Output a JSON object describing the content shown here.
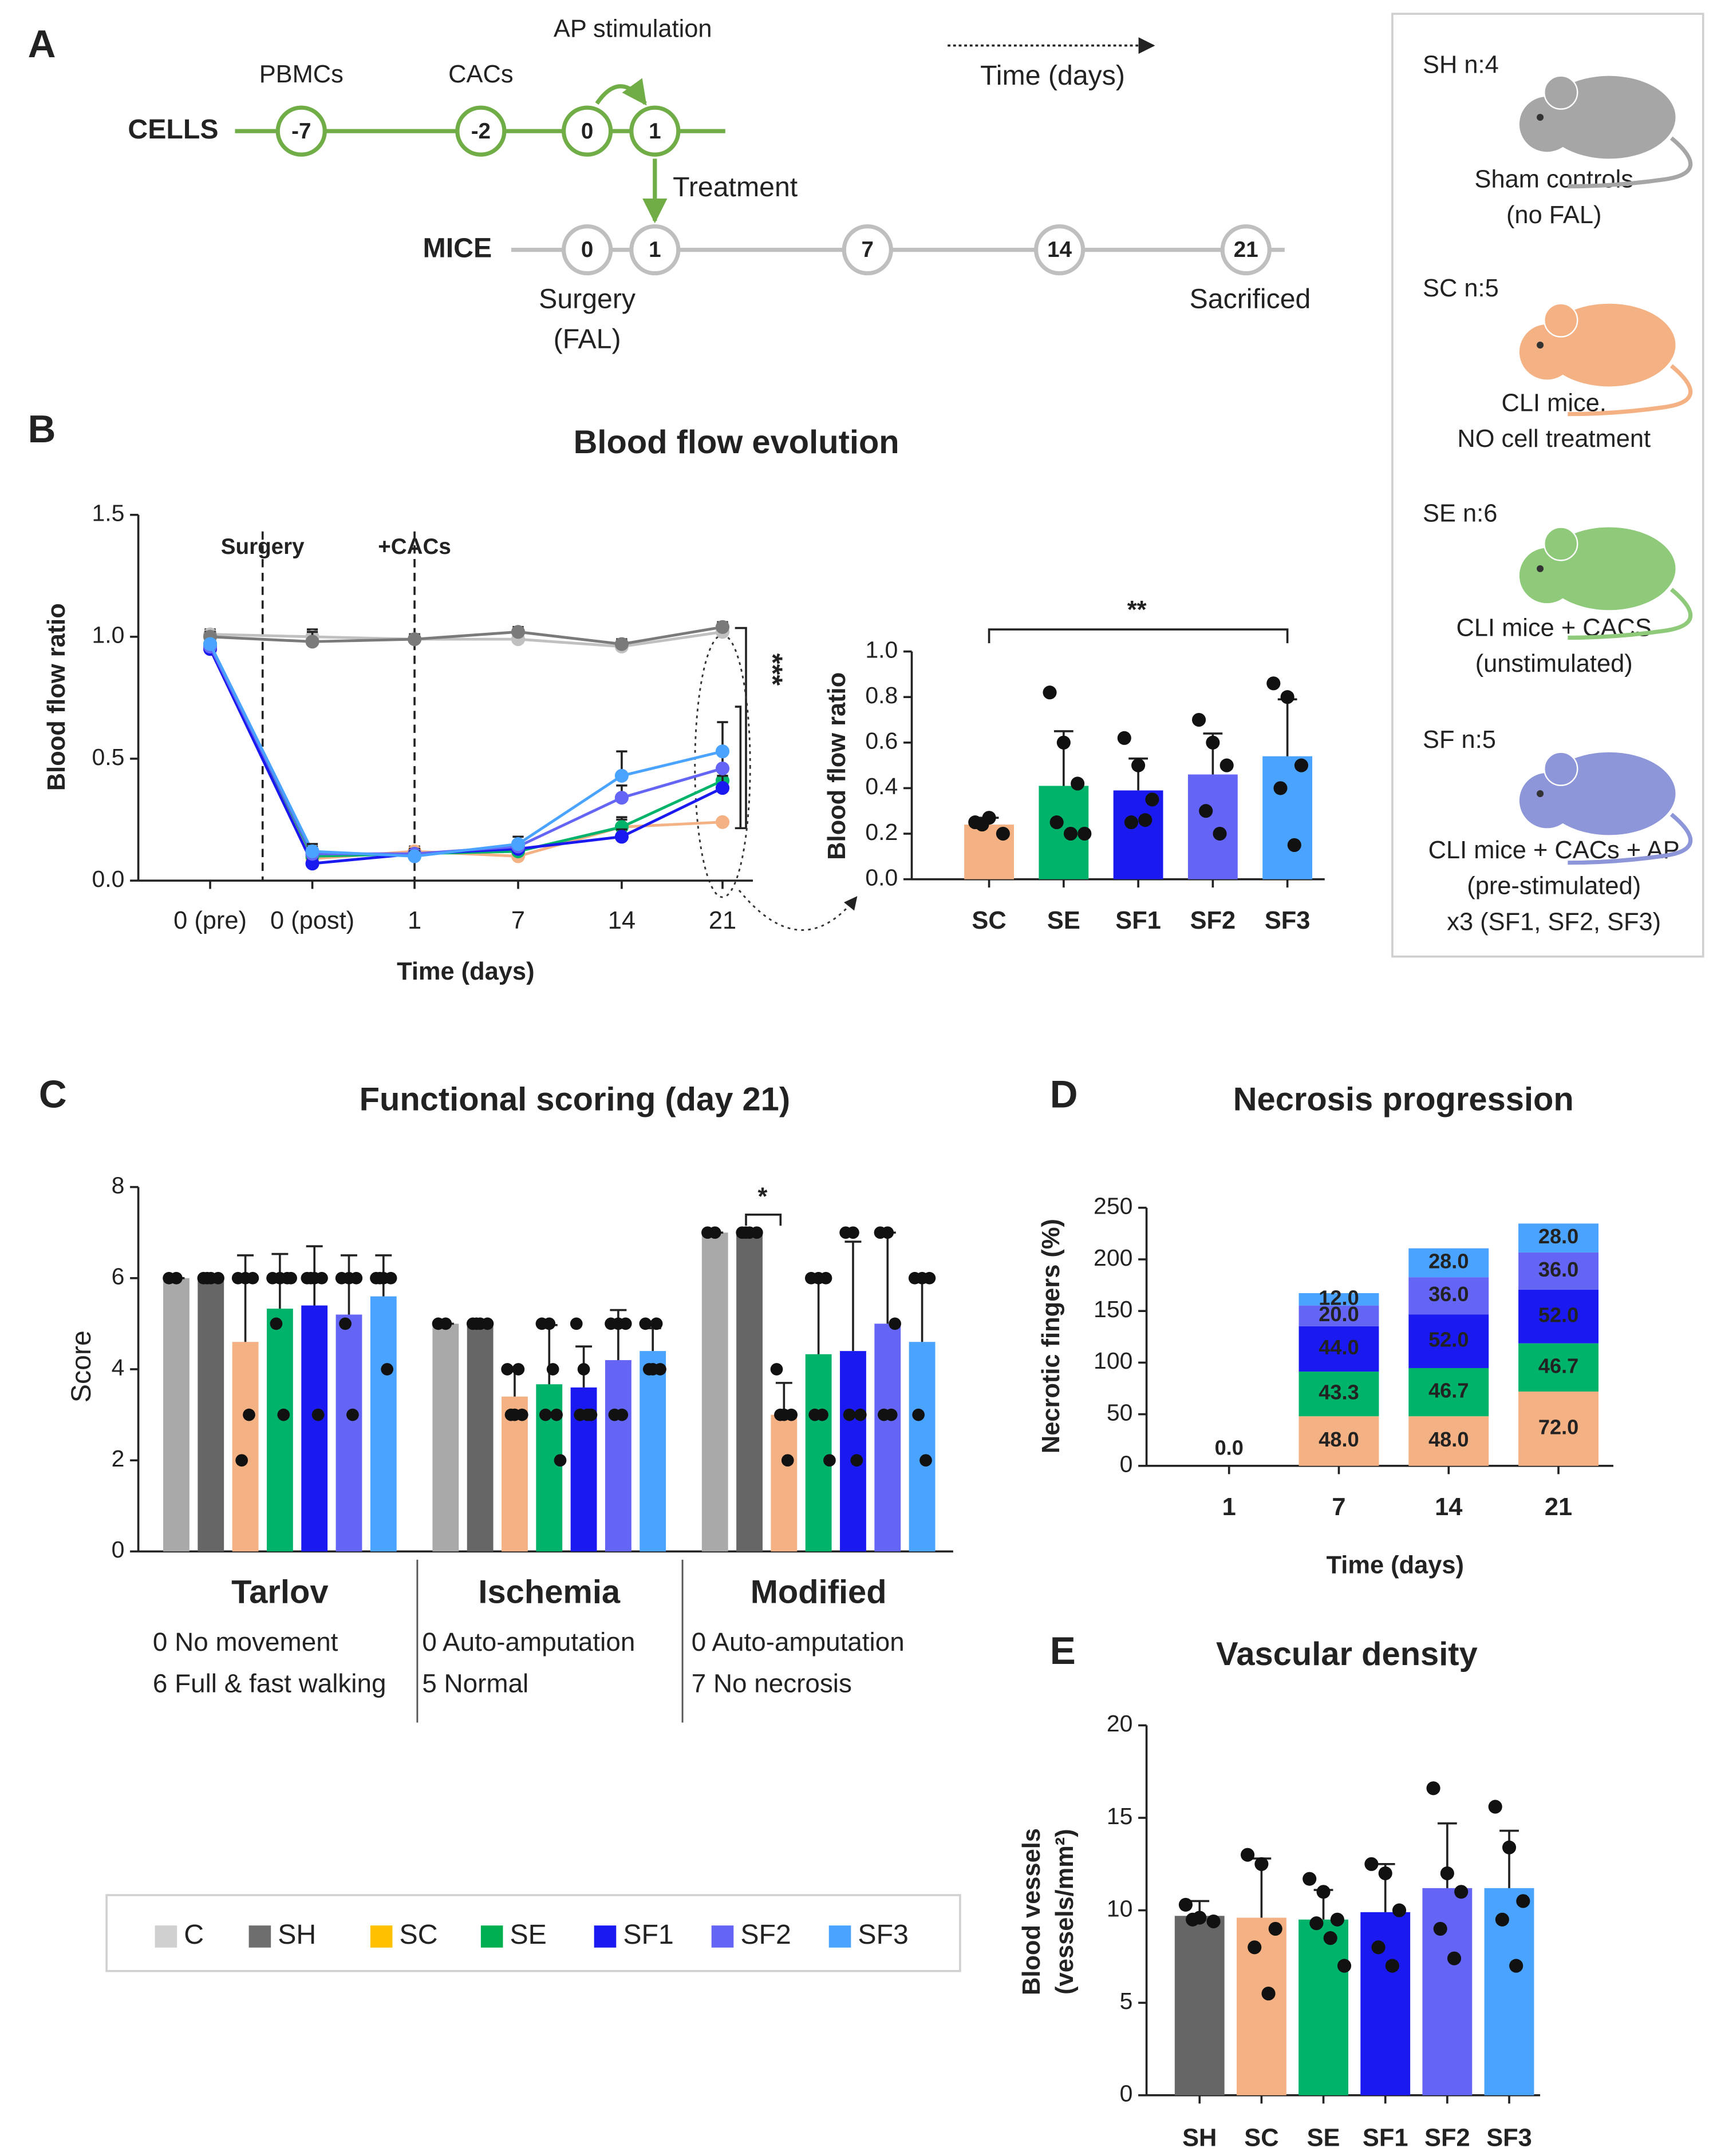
{
  "panel_labels": [
    "A",
    "B",
    "C",
    "D",
    "E"
  ],
  "timeline": {
    "cells_label": "CELLS",
    "mice_label": "MICE",
    "cells_nodes": [
      "-7",
      "-2",
      "0",
      "1"
    ],
    "cells_texts": [
      "PBMCs",
      "CACs",
      "AP stimulation"
    ],
    "mice_nodes": [
      "0",
      "1",
      "7",
      "14",
      "21"
    ],
    "treatment": "Treatment",
    "surgery": "Surgery",
    "fal": "(FAL)",
    "sacrificed": "Sacrificed",
    "time_arrow": "Time (days)"
  },
  "groups_box": [
    {
      "label": "SH n:4",
      "desc": [
        "Sham controls",
        "(no FAL)"
      ],
      "color": "#7f7f7f",
      "icon_color": "#a6a6a6"
    },
    {
      "label": "SC n:5",
      "desc": [
        "CLI mice,",
        "NO cell treatment"
      ],
      "color": "#ffc000",
      "icon_color": "#f4b183"
    },
    {
      "label": "SE n:6",
      "desc": [
        "CLI mice + CACS",
        "(unstimulated)"
      ],
      "color": "#00b050",
      "icon_color": "#8fc97a"
    },
    {
      "label": "SF n:5",
      "desc": [
        "CLI mice + CACs + AP",
        "(pre-stimulated)",
        "x3 (SF1, SF2, SF3)"
      ],
      "color": "#0070c0",
      "icon_color": "#8c96d8"
    }
  ],
  "legend": {
    "items": [
      {
        "name": "C",
        "color": "#d0d0d0"
      },
      {
        "name": "SH",
        "color": "#6e6e6e"
      },
      {
        "name": "SC",
        "color": "#ffc000"
      },
      {
        "name": "SE",
        "color": "#00b050"
      },
      {
        "name": "SF1",
        "color": "#1a1af0"
      },
      {
        "name": "SF2",
        "color": "#6464f5"
      },
      {
        "name": "SF3",
        "color": "#4aa3ff"
      }
    ]
  },
  "chart_data": [
    {
      "type": "line",
      "title": "Blood flow evolution",
      "x_label": "Time (days)",
      "y_label": "Blood flow ratio",
      "categories": [
        "0 (pre)",
        "0 (post)",
        "1",
        "7",
        "14",
        "21"
      ],
      "ylim": [
        0,
        1.5
      ],
      "yticks": [
        {
          "value": 0,
          "label": "0.0"
        },
        0.5,
        {
          "value": 1,
          "label": "1.0"
        },
        1.5
      ],
      "annotations": [
        "Surgery",
        "+CACs",
        "***"
      ],
      "series": [
        {
          "name": "C",
          "color": "#c0c0c0",
          "values": [
            1.01,
            1.0,
            0.99,
            0.99,
            0.96,
            1.02
          ],
          "errors": [
            0.02,
            0.03,
            0.02,
            0.03,
            0.02,
            0.02
          ]
        },
        {
          "name": "SH",
          "color": "#7a7a7a",
          "values": [
            1.0,
            0.98,
            0.99,
            1.02,
            0.97,
            1.04
          ],
          "errors": [
            0.02,
            0.04,
            0.02,
            0.02,
            0.02,
            0.02
          ]
        },
        {
          "name": "SC",
          "color": "#f4b183",
          "values": [
            0.97,
            0.09,
            0.12,
            0.1,
            0.22,
            0.24
          ],
          "errors": [
            0.01,
            0.02,
            0.02,
            0.02,
            0.03,
            0
          ]
        },
        {
          "name": "SE",
          "color": "#00b36b",
          "values": [
            0.97,
            0.1,
            0.11,
            0.12,
            0.22,
            0.41
          ],
          "errors": [
            0.01,
            0.02,
            0.02,
            0.03,
            0.04,
            0.05
          ]
        },
        {
          "name": "SF1",
          "color": "#1a1af0",
          "values": [
            0.95,
            0.07,
            0.11,
            0.13,
            0.18,
            0.38
          ],
          "errors": [
            0.01,
            0.02,
            0.01,
            0.02,
            0.03,
            0.05
          ]
        },
        {
          "name": "SF2",
          "color": "#6464f5",
          "values": [
            0.96,
            0.11,
            0.11,
            0.14,
            0.34,
            0.46
          ],
          "errors": [
            0.01,
            0.03,
            0.02,
            0.02,
            0.05,
            0.08
          ]
        },
        {
          "name": "SF3",
          "color": "#4aa3ff",
          "values": [
            0.97,
            0.12,
            0.1,
            0.15,
            0.43,
            0.53
          ],
          "errors": [
            0.01,
            0.03,
            0.02,
            0.03,
            0.1,
            0.12
          ]
        }
      ]
    },
    {
      "type": "bar",
      "y_label": "Blood flow ratio",
      "categories": [
        "SC",
        "SE",
        "SF1",
        "SF2",
        "SF3"
      ],
      "values": [
        0.24,
        0.41,
        0.39,
        0.46,
        0.54
      ],
      "errors": [
        0.03,
        0.24,
        0.14,
        0.18,
        0.25
      ],
      "colors": [
        "#f4b183",
        "#00b36b",
        "#1a1af0",
        "#6464f5",
        "#4aa3ff"
      ],
      "points": [
        [
          0.25,
          0.27,
          0.2,
          0.24
        ],
        [
          0.82,
          0.6,
          0.42,
          0.25,
          0.2,
          0.2
        ],
        [
          0.62,
          0.5,
          0.35,
          0.25,
          0.26
        ],
        [
          0.7,
          0.6,
          0.5,
          0.3,
          0.2
        ],
        [
          0.86,
          0.8,
          0.5,
          0.4,
          0.15
        ]
      ],
      "ylim": [
        0,
        1
      ],
      "yticks": [
        {
          "value": 0,
          "label": "0.0"
        },
        0.2,
        0.4,
        0.6,
        0.8,
        {
          "value": 1,
          "label": "1.0"
        }
      ],
      "annotations": [
        "**"
      ]
    },
    {
      "type": "grouped_bar",
      "title": "Functional scoring (day 21)",
      "y_label": "Score",
      "categories": [
        "Tarlov",
        "Ischemia",
        "Modified"
      ],
      "scale_notes": [
        [
          "0 No movement",
          "6 Full & fast walking"
        ],
        [
          "0 Auto-amputation",
          "5 Normal"
        ],
        [
          "0 Auto-amputation",
          "7 No necrosis"
        ]
      ],
      "ylim": [
        0,
        8
      ],
      "yticks": [
        0,
        2,
        4,
        6,
        8
      ],
      "annotations": [
        "*"
      ],
      "series": [
        {
          "name": "C",
          "color": "#a9a9a9",
          "values": [
            6,
            5,
            7
          ],
          "errors": [
            0,
            0,
            0
          ],
          "points": [
            [
              6,
              6
            ],
            [
              5,
              5
            ],
            [
              7,
              7
            ]
          ]
        },
        {
          "name": "SH",
          "color": "#666666",
          "values": [
            6,
            5,
            7
          ],
          "errors": [
            0,
            0,
            0
          ],
          "points": [
            [
              6,
              6,
              6,
              6
            ],
            [
              5,
              5,
              5,
              5
            ],
            [
              7,
              7,
              7,
              7
            ]
          ]
        },
        {
          "name": "SC",
          "color": "#f4b183",
          "values": [
            4.6,
            3.4,
            3
          ],
          "errors": [
            1.9,
            0.6,
            0.7
          ],
          "points": [
            [
              6,
              6,
              6,
              2,
              3
            ],
            [
              4,
              3,
              3,
              3,
              4
            ],
            [
              4,
              3,
              3,
              3,
              2
            ]
          ]
        },
        {
          "name": "SE",
          "color": "#00b36b",
          "values": [
            5.33,
            3.67,
            4.33
          ],
          "errors": [
            1.2,
            1.3,
            1.7
          ],
          "points": [
            [
              6,
              6,
              6,
              5,
              3,
              6
            ],
            [
              5,
              5,
              3,
              3,
              4,
              2
            ],
            [
              6,
              6,
              6,
              3,
              3,
              2
            ]
          ]
        },
        {
          "name": "SF1",
          "color": "#1a1af0",
          "values": [
            5.4,
            3.6,
            4.4
          ],
          "errors": [
            1.3,
            0.9,
            2.4
          ],
          "points": [
            [
              6,
              6,
              6,
              6,
              3
            ],
            [
              5,
              4,
              3,
              3,
              3
            ],
            [
              7,
              7,
              3,
              3,
              2
            ]
          ]
        },
        {
          "name": "SF2",
          "color": "#6464f5",
          "values": [
            5.2,
            4.2,
            5
          ],
          "errors": [
            1.3,
            1.1,
            2
          ],
          "points": [
            [
              6,
              6,
              6,
              5,
              3
            ],
            [
              5,
              5,
              5,
              3,
              3
            ],
            [
              7,
              7,
              5,
              3,
              3
            ]
          ]
        },
        {
          "name": "SF3",
          "color": "#4aa3ff",
          "values": [
            5.6,
            4.4,
            4.6
          ],
          "errors": [
            0.9,
            0.5,
            1.4
          ],
          "points": [
            [
              6,
              6,
              6,
              6,
              4
            ],
            [
              5,
              4,
              4,
              4,
              5
            ],
            [
              6,
              6,
              6,
              3,
              2
            ]
          ]
        }
      ]
    },
    {
      "type": "stacked_bar",
      "title": "Necrosis progression",
      "x_label": "Time (days)",
      "y_label": "Necrotic fingers (%)",
      "categories": [
        "1",
        "7",
        "14",
        "21"
      ],
      "ylim": [
        0,
        250
      ],
      "yticks": [
        0,
        50,
        100,
        150,
        200,
        250
      ],
      "series": [
        {
          "name": "SC",
          "color": "#f4b183",
          "values": [
            0,
            48,
            48,
            72
          ],
          "value_labels": [
            "0.0",
            "48.0",
            "48.0",
            "72.0"
          ]
        },
        {
          "name": "SE",
          "color": "#00b36b",
          "values": [
            0,
            43.3,
            46.7,
            46.7
          ],
          "value_labels": [
            null,
            "43.3",
            "46.7",
            "46.7"
          ]
        },
        {
          "name": "SF1",
          "color": "#1a1af0",
          "values": [
            0,
            44,
            52,
            52
          ],
          "value_labels": [
            null,
            "44.0",
            "52.0",
            "52.0"
          ]
        },
        {
          "name": "SF2",
          "color": "#6464f5",
          "values": [
            0,
            20,
            36,
            36
          ],
          "value_labels": [
            null,
            "20.0",
            "36.0",
            "36.0"
          ]
        },
        {
          "name": "SF3",
          "color": "#4aa3ff",
          "values": [
            0,
            12,
            28,
            28
          ],
          "value_labels": [
            null,
            "12.0",
            "28.0",
            "28.0"
          ]
        }
      ]
    },
    {
      "type": "bar",
      "title": "Vascular density",
      "y_label": [
        "Blood vessels",
        "(vessels/mm²)"
      ],
      "categories": [
        "SH",
        "SC",
        "SE",
        "SF1",
        "SF2",
        "SF3"
      ],
      "values": [
        9.7,
        9.6,
        9.5,
        9.9,
        11.2,
        11.2
      ],
      "errors": [
        0.8,
        3.2,
        1.6,
        2.6,
        3.5,
        3.1
      ],
      "colors": [
        "#666666",
        "#f4b183",
        "#00b36b",
        "#1a1af0",
        "#6464f5",
        "#4aa3ff"
      ],
      "points": [
        [
          10.3,
          9.6,
          9.4,
          9.5
        ],
        [
          13,
          12.5,
          9,
          8,
          5.5
        ],
        [
          11.7,
          11,
          9.5,
          9.3,
          8.5,
          7
        ],
        [
          12.5,
          12,
          10,
          8,
          7
        ],
        [
          16.6,
          12,
          11,
          9,
          7.4
        ],
        [
          15.6,
          13.4,
          10.5,
          9.5,
          7
        ]
      ],
      "ylim": [
        0,
        20
      ],
      "yticks": [
        0,
        5,
        10,
        15,
        20
      ]
    }
  ]
}
